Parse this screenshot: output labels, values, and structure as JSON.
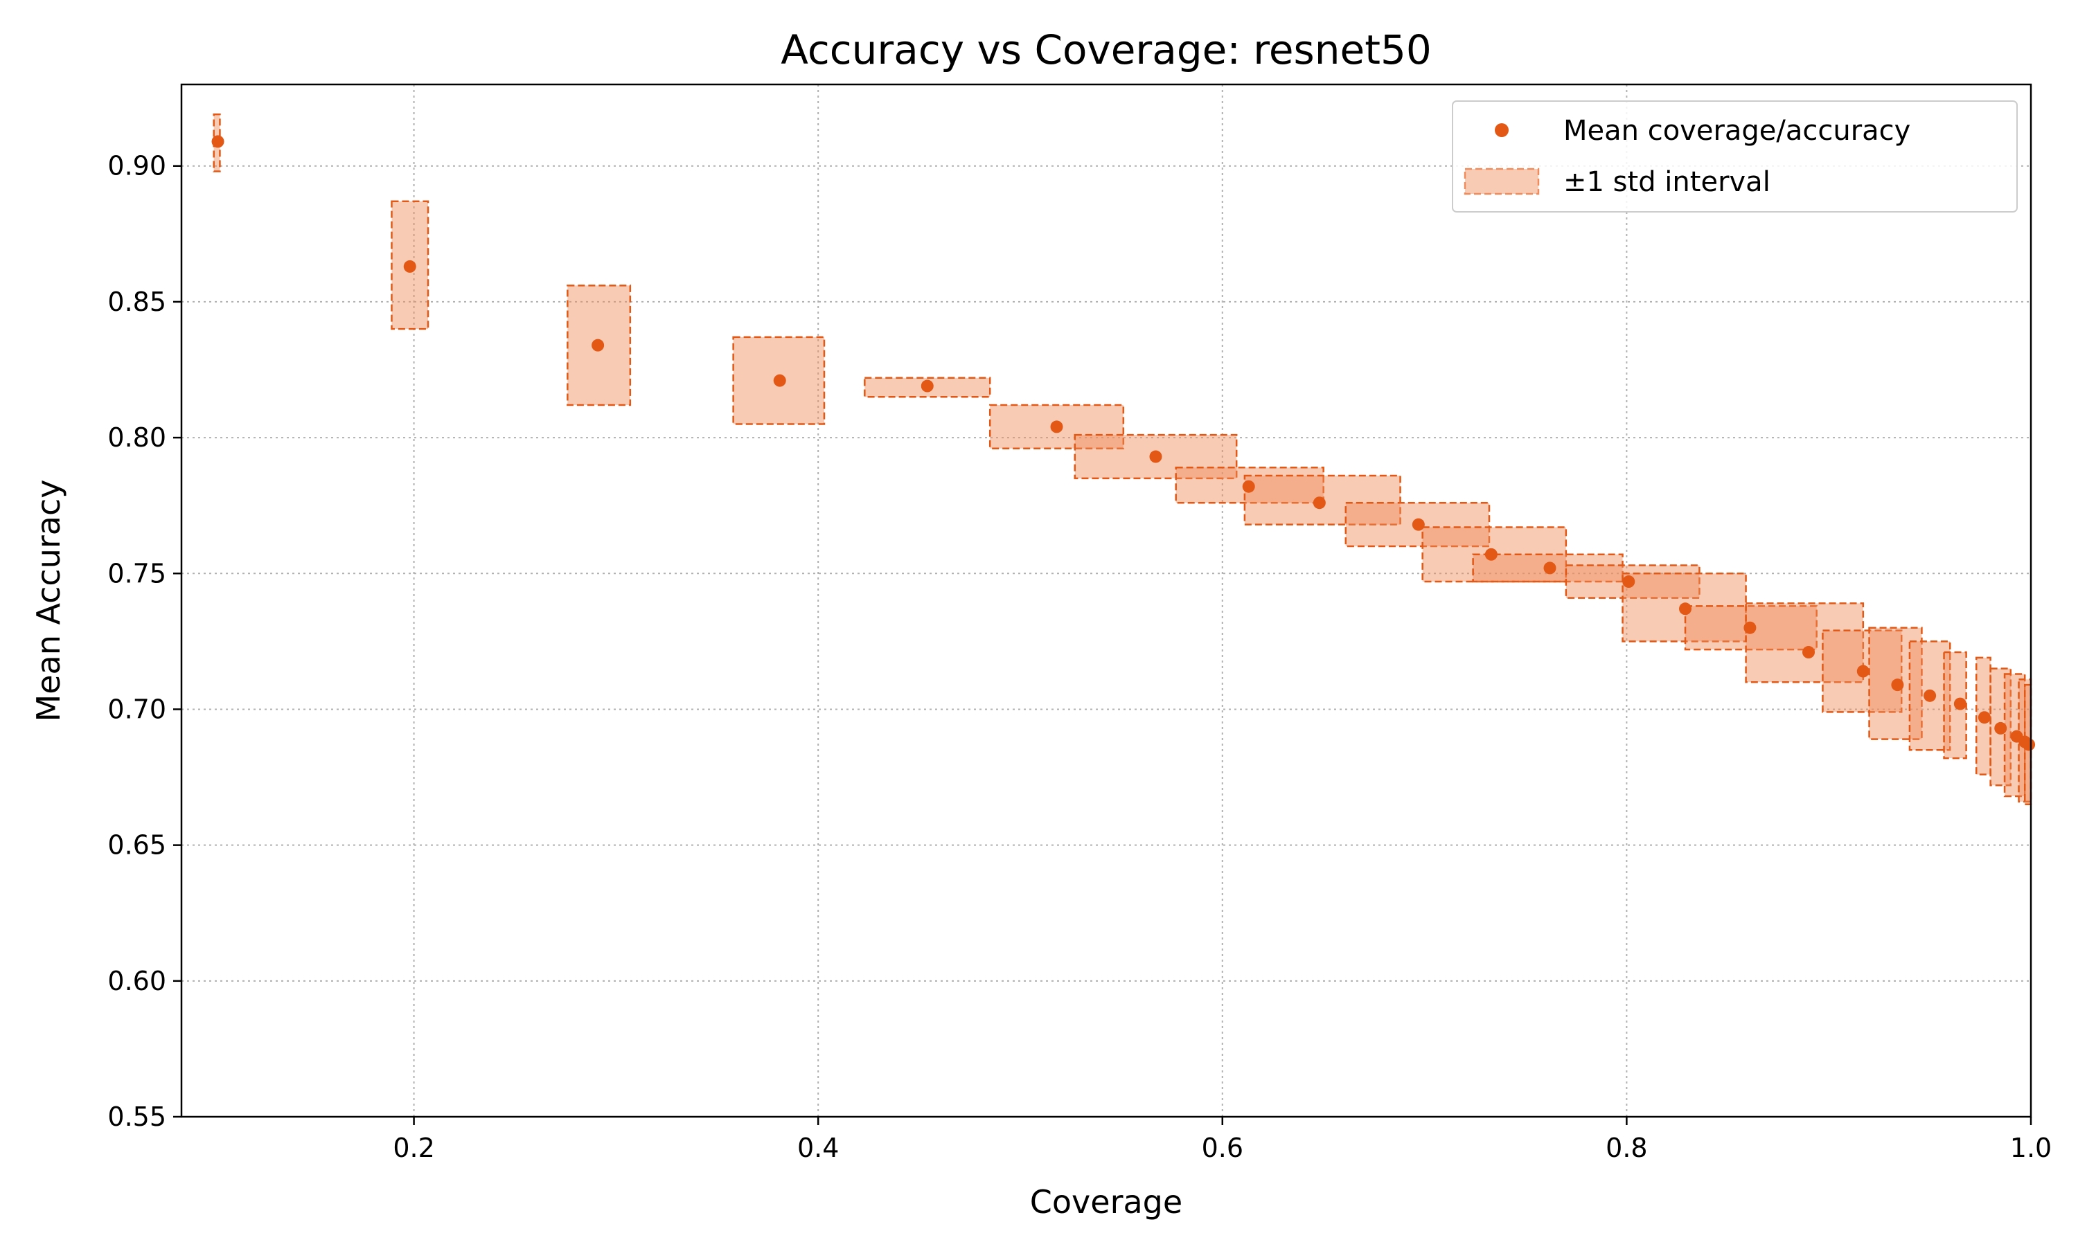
{
  "chart_data": {
    "type": "scatter",
    "title": "Accuracy vs Coverage: resnet50",
    "xlabel": "Coverage",
    "ylabel": "Mean Accuracy",
    "xlim": [
      0.085,
      1.0
    ],
    "ylim": [
      0.55,
      0.93
    ],
    "xticks": [
      0.2,
      0.4,
      0.6,
      0.8,
      1.0
    ],
    "xtick_labels": [
      "0.2",
      "0.4",
      "0.6",
      "0.8",
      "1.0"
    ],
    "yticks": [
      0.55,
      0.6,
      0.65,
      0.7,
      0.75,
      0.8,
      0.85,
      0.9
    ],
    "ytick_labels": [
      "0.55",
      "0.60",
      "0.65",
      "0.70",
      "0.75",
      "0.80",
      "0.85",
      "0.90"
    ],
    "grid": true,
    "legend_position": "top-right",
    "legend": [
      "Mean coverage/accuracy",
      "±1 std interval"
    ],
    "colors": {
      "marker": "#e25814",
      "box_fill": "#f08c5c",
      "box_edge": "#e25814"
    },
    "series": [
      {
        "name": "Mean coverage/accuracy",
        "points": [
          {
            "x": 0.103,
            "y": 0.909,
            "x_lo": 0.101,
            "x_hi": 0.104,
            "y_lo": 0.898,
            "y_hi": 0.919
          },
          {
            "x": 0.198,
            "y": 0.863,
            "x_lo": 0.189,
            "x_hi": 0.207,
            "y_lo": 0.84,
            "y_hi": 0.887
          },
          {
            "x": 0.291,
            "y": 0.834,
            "x_lo": 0.276,
            "x_hi": 0.307,
            "y_lo": 0.812,
            "y_hi": 0.856
          },
          {
            "x": 0.381,
            "y": 0.821,
            "x_lo": 0.358,
            "x_hi": 0.403,
            "y_lo": 0.805,
            "y_hi": 0.837
          },
          {
            "x": 0.454,
            "y": 0.819,
            "x_lo": 0.423,
            "x_hi": 0.485,
            "y_lo": 0.815,
            "y_hi": 0.822
          },
          {
            "x": 0.518,
            "y": 0.804,
            "x_lo": 0.485,
            "x_hi": 0.551,
            "y_lo": 0.796,
            "y_hi": 0.812
          },
          {
            "x": 0.567,
            "y": 0.793,
            "x_lo": 0.527,
            "x_hi": 0.607,
            "y_lo": 0.785,
            "y_hi": 0.801
          },
          {
            "x": 0.613,
            "y": 0.782,
            "x_lo": 0.577,
            "x_hi": 0.65,
            "y_lo": 0.776,
            "y_hi": 0.789
          },
          {
            "x": 0.648,
            "y": 0.776,
            "x_lo": 0.611,
            "x_hi": 0.688,
            "y_lo": 0.768,
            "y_hi": 0.786
          },
          {
            "x": 0.697,
            "y": 0.768,
            "x_lo": 0.661,
            "x_hi": 0.732,
            "y_lo": 0.76,
            "y_hi": 0.776
          },
          {
            "x": 0.733,
            "y": 0.757,
            "x_lo": 0.699,
            "x_hi": 0.77,
            "y_lo": 0.747,
            "y_hi": 0.767
          },
          {
            "x": 0.762,
            "y": 0.752,
            "x_lo": 0.724,
            "x_hi": 0.798,
            "y_lo": 0.747,
            "y_hi": 0.757
          },
          {
            "x": 0.801,
            "y": 0.747,
            "x_lo": 0.77,
            "x_hi": 0.836,
            "y_lo": 0.741,
            "y_hi": 0.753
          },
          {
            "x": 0.829,
            "y": 0.737,
            "x_lo": 0.798,
            "x_hi": 0.859,
            "y_lo": 0.725,
            "y_hi": 0.75
          },
          {
            "x": 0.861,
            "y": 0.73,
            "x_lo": 0.829,
            "x_hi": 0.894,
            "y_lo": 0.722,
            "y_hi": 0.738
          },
          {
            "x": 0.89,
            "y": 0.721,
            "x_lo": 0.859,
            "x_hi": 0.917,
            "y_lo": 0.71,
            "y_hi": 0.739
          },
          {
            "x": 0.917,
            "y": 0.714,
            "x_lo": 0.897,
            "x_hi": 0.936,
            "y_lo": 0.699,
            "y_hi": 0.729
          },
          {
            "x": 0.934,
            "y": 0.709,
            "x_lo": 0.92,
            "x_hi": 0.946,
            "y_lo": 0.689,
            "y_hi": 0.73
          },
          {
            "x": 0.95,
            "y": 0.705,
            "x_lo": 0.94,
            "x_hi": 0.96,
            "y_lo": 0.685,
            "y_hi": 0.725
          },
          {
            "x": 0.965,
            "y": 0.702,
            "x_lo": 0.957,
            "x_hi": 0.968,
            "y_lo": 0.682,
            "y_hi": 0.721
          },
          {
            "x": 0.977,
            "y": 0.697,
            "x_lo": 0.973,
            "x_hi": 0.98,
            "y_lo": 0.676,
            "y_hi": 0.719
          },
          {
            "x": 0.985,
            "y": 0.693,
            "x_lo": 0.98,
            "x_hi": 0.99,
            "y_lo": 0.672,
            "y_hi": 0.715
          },
          {
            "x": 0.993,
            "y": 0.69,
            "x_lo": 0.987,
            "x_hi": 0.997,
            "y_lo": 0.668,
            "y_hi": 0.713
          },
          {
            "x": 0.997,
            "y": 0.688,
            "x_lo": 0.994,
            "x_hi": 1.0,
            "y_lo": 0.666,
            "y_hi": 0.711
          },
          {
            "x": 0.999,
            "y": 0.687,
            "x_lo": 0.997,
            "x_hi": 1.0,
            "y_lo": 0.665,
            "y_hi": 0.709
          }
        ]
      }
    ]
  }
}
